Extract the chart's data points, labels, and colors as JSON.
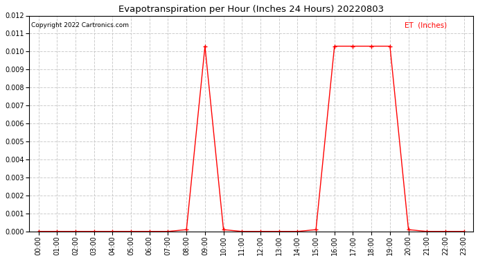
{
  "title": "Evapotranspiration per Hour (Inches 24 Hours) 20220803",
  "copyright_text": "Copyright 2022 Cartronics.com",
  "legend_label": "ET  (Inches)",
  "line_color": "red",
  "background_color": "#ffffff",
  "hours": [
    0,
    1,
    2,
    3,
    4,
    5,
    6,
    7,
    8,
    9,
    10,
    11,
    12,
    13,
    14,
    15,
    16,
    17,
    18,
    19,
    20,
    21,
    22,
    23
  ],
  "values": [
    0.0,
    0.0,
    0.0,
    0.0,
    0.0,
    0.0,
    0.0,
    0.0,
    0.0001,
    0.0103,
    0.0001,
    0.0,
    0.0,
    0.0,
    0.0,
    0.0001,
    0.0103,
    0.0103,
    0.0103,
    0.0103,
    0.0001,
    0.0,
    0.0,
    0.0
  ],
  "ylim": [
    0.0,
    0.012
  ],
  "yticks": [
    0.0,
    0.001,
    0.002,
    0.003,
    0.004,
    0.005,
    0.006,
    0.007,
    0.008,
    0.009,
    0.01,
    0.011,
    0.012
  ],
  "xtick_labels": [
    "00:00",
    "01:00",
    "02:00",
    "03:00",
    "04:00",
    "05:00",
    "06:00",
    "07:00",
    "08:00",
    "09:00",
    "10:00",
    "11:00",
    "12:00",
    "13:00",
    "14:00",
    "15:00",
    "16:00",
    "17:00",
    "18:00",
    "19:00",
    "20:00",
    "21:00",
    "22:00",
    "23:00"
  ],
  "marker": "+",
  "marker_size": 5,
  "marker_edge_width": 1.0,
  "line_width": 1.0,
  "grid_color": "#cccccc",
  "grid_linestyle": "--"
}
